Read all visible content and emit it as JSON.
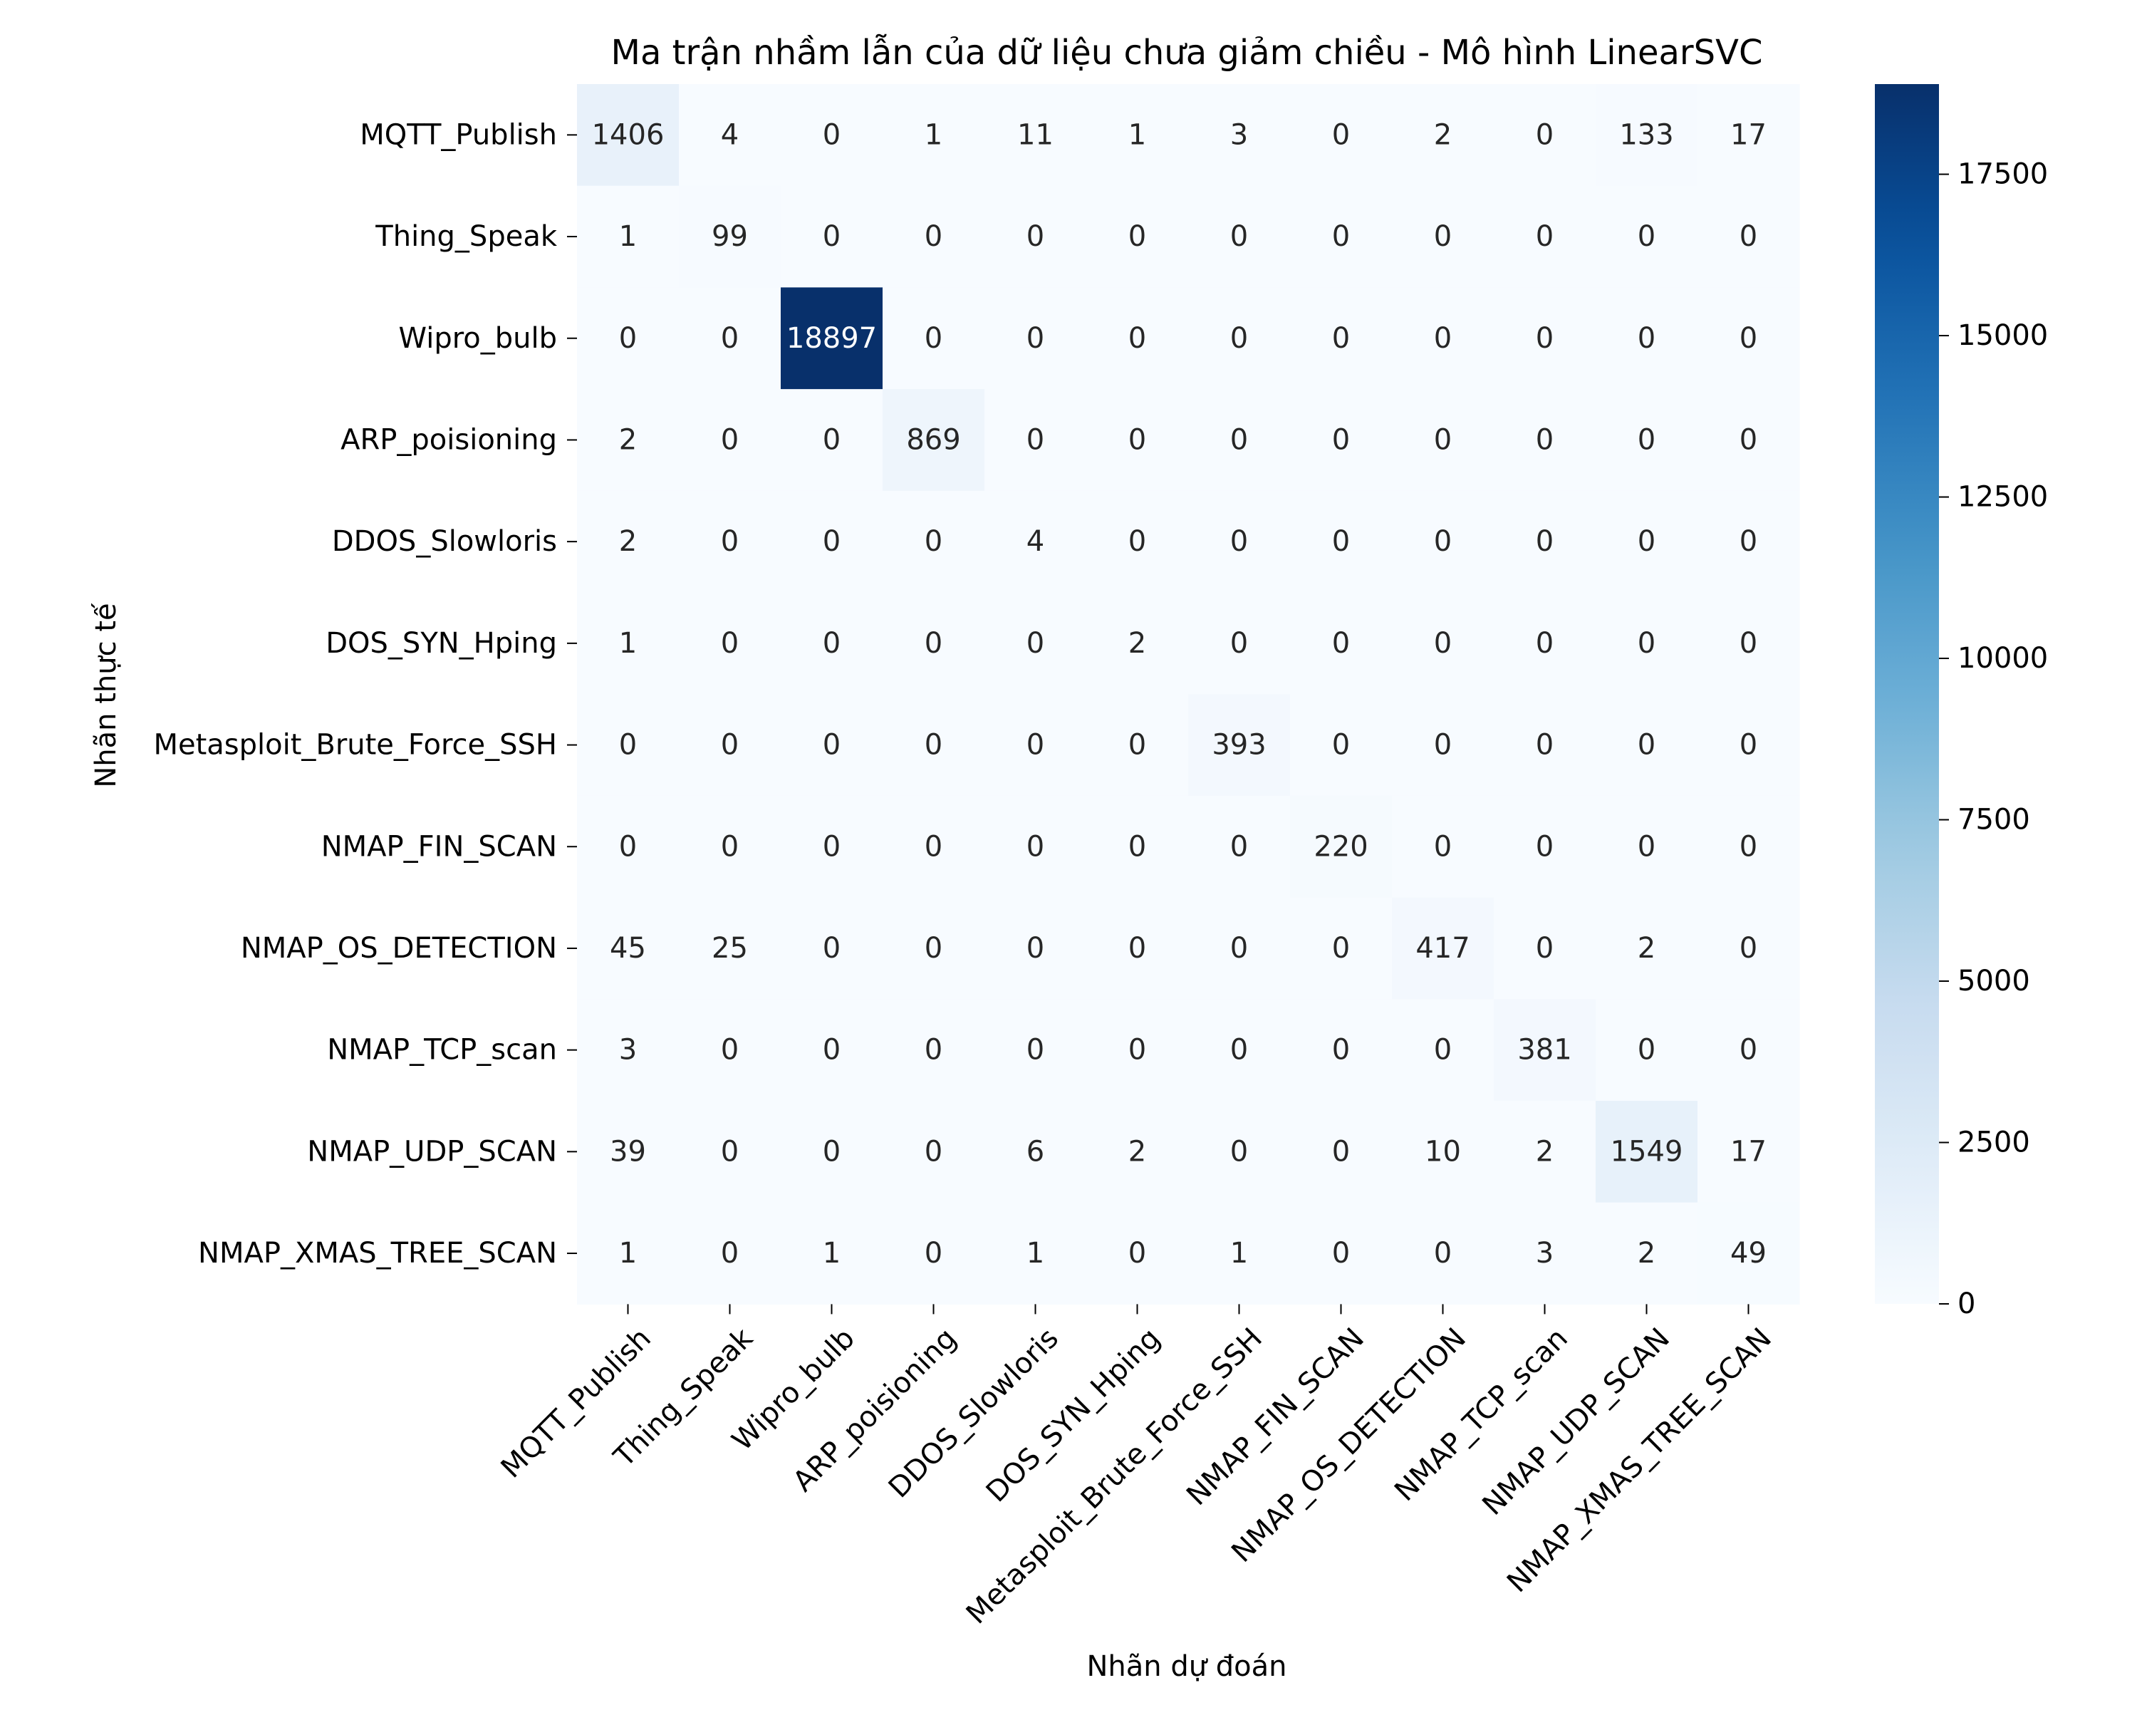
{
  "chart_data": {
    "type": "heatmap",
    "title": "Ma trận nhầm lẫn của dữ liệu chưa giảm chiều - Mô hình LinearSVC",
    "xlabel": "Nhãn dự đoán",
    "ylabel": "Nhãn thực tế",
    "labels": [
      "MQTT_Publish",
      "Thing_Speak",
      "Wipro_bulb",
      "ARP_poisioning",
      "DDOS_Slowloris",
      "DOS_SYN_Hping",
      "Metasploit_Brute_Force_SSH",
      "NMAP_FIN_SCAN",
      "NMAP_OS_DETECTION",
      "NMAP_TCP_scan",
      "NMAP_UDP_SCAN",
      "NMAP_XMAS_TREE_SCAN"
    ],
    "matrix": [
      [
        1406,
        4,
        0,
        1,
        11,
        1,
        3,
        0,
        2,
        0,
        133,
        17
      ],
      [
        1,
        99,
        0,
        0,
        0,
        0,
        0,
        0,
        0,
        0,
        0,
        0
      ],
      [
        0,
        0,
        18897,
        0,
        0,
        0,
        0,
        0,
        0,
        0,
        0,
        0
      ],
      [
        2,
        0,
        0,
        869,
        0,
        0,
        0,
        0,
        0,
        0,
        0,
        0
      ],
      [
        2,
        0,
        0,
        0,
        4,
        0,
        0,
        0,
        0,
        0,
        0,
        0
      ],
      [
        1,
        0,
        0,
        0,
        0,
        2,
        0,
        0,
        0,
        0,
        0,
        0
      ],
      [
        0,
        0,
        0,
        0,
        0,
        0,
        393,
        0,
        0,
        0,
        0,
        0
      ],
      [
        0,
        0,
        0,
        0,
        0,
        0,
        0,
        220,
        0,
        0,
        0,
        0
      ],
      [
        45,
        25,
        0,
        0,
        0,
        0,
        0,
        0,
        417,
        0,
        2,
        0
      ],
      [
        3,
        0,
        0,
        0,
        0,
        0,
        0,
        0,
        0,
        381,
        0,
        0
      ],
      [
        39,
        0,
        0,
        0,
        6,
        2,
        0,
        0,
        10,
        2,
        1549,
        17
      ],
      [
        1,
        0,
        1,
        0,
        1,
        0,
        1,
        0,
        0,
        3,
        2,
        49
      ]
    ],
    "colorbar": {
      "min": 0,
      "max": 18897,
      "ticks": [
        0,
        2500,
        5000,
        7500,
        10000,
        12500,
        15000,
        17500
      ],
      "colormap": "Blues",
      "low_color": "#f7fbff",
      "high_color": "#08306b"
    }
  }
}
